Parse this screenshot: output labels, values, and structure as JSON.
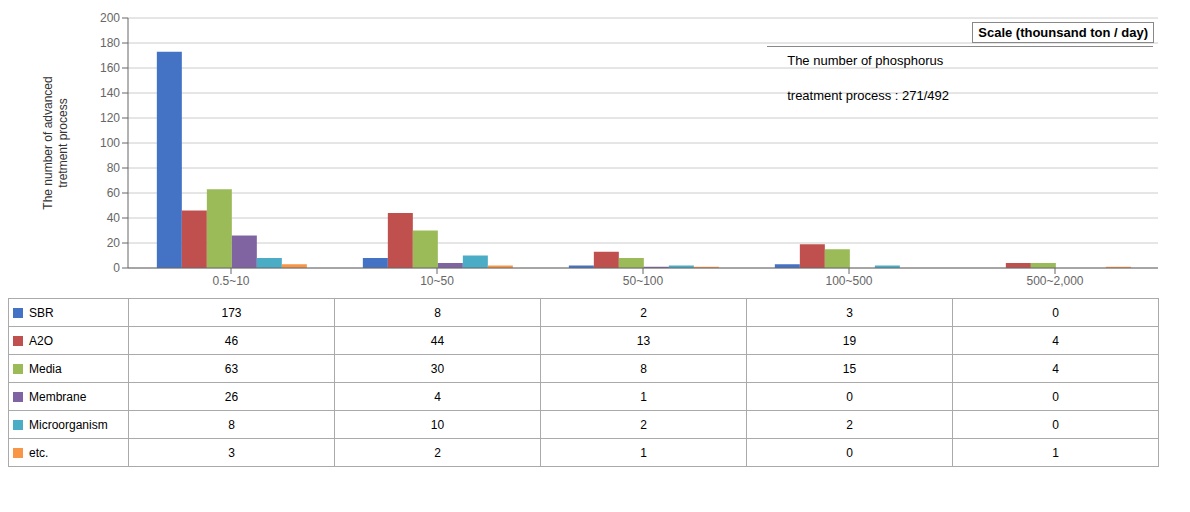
{
  "chart_data": {
    "type": "bar",
    "categories": [
      "0.5~10",
      "10~50",
      "50~100",
      "100~500",
      "500~2,000"
    ],
    "series": [
      {
        "name": "SBR",
        "color": "#4472C4",
        "values": [
          173,
          8,
          2,
          3,
          0
        ]
      },
      {
        "name": "A2O",
        "color": "#C0504D",
        "values": [
          46,
          44,
          13,
          19,
          4
        ]
      },
      {
        "name": "Media",
        "color": "#9BBB59",
        "values": [
          63,
          30,
          8,
          15,
          4
        ]
      },
      {
        "name": "Membrane",
        "color": "#8064A2",
        "values": [
          26,
          4,
          1,
          0,
          0
        ]
      },
      {
        "name": "Microorganism",
        "color": "#4BACC6",
        "values": [
          8,
          10,
          2,
          2,
          0
        ]
      },
      {
        "name": "etc.",
        "color": "#F79646",
        "values": [
          3,
          2,
          1,
          0,
          1
        ]
      }
    ],
    "ylabel": "The number of advanced\ntretment process",
    "ylim": [
      0,
      200
    ],
    "yticks": [
      0,
      20,
      40,
      60,
      80,
      100,
      120,
      140,
      160,
      180,
      200
    ],
    "grid": true,
    "annotations": [
      "Scale (thounsand ton / day)",
      "The number of phosphorus",
      "treatment process : 271/492"
    ]
  }
}
